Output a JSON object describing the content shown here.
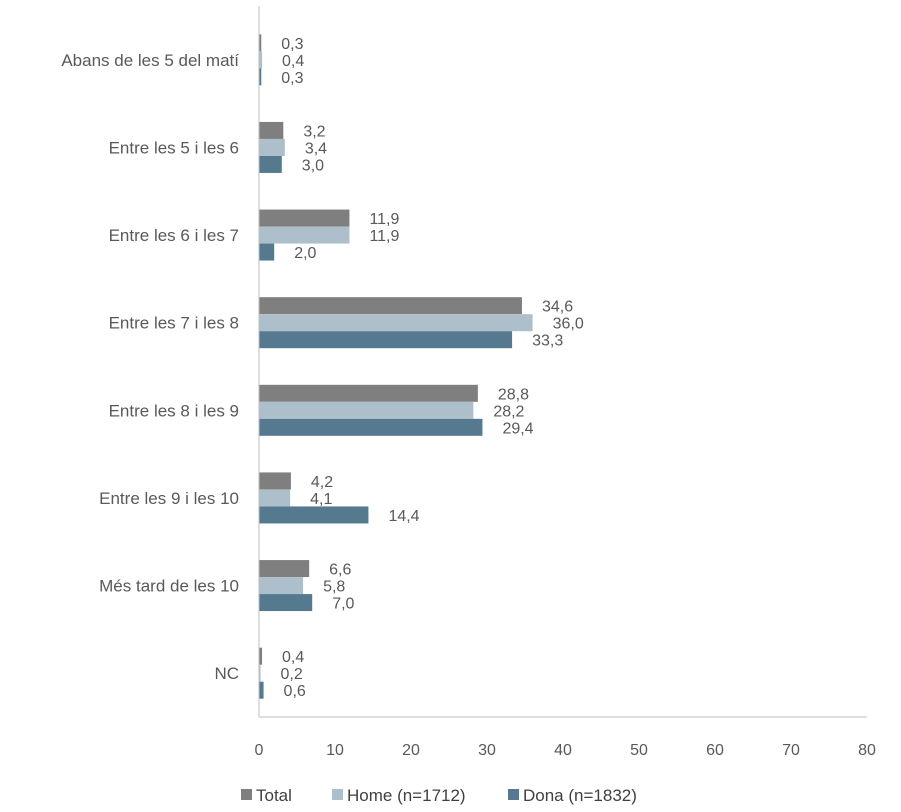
{
  "chart_data": {
    "type": "bar",
    "orientation": "horizontal",
    "categories": [
      "Abans de les 5 del matí",
      "Entre les 5 i les 6",
      "Entre les 6 i les 7",
      "Entre les 7 i les 8",
      "Entre les 8 i les 9",
      "Entre les 9 i les 10",
      "Més tard de les 10",
      "NC"
    ],
    "series": [
      {
        "name": "Total",
        "color": "#7f7f7f",
        "values": [
          0.3,
          3.2,
          11.9,
          34.6,
          28.8,
          4.2,
          6.6,
          0.4
        ],
        "labels": [
          "0,3",
          "3,2",
          "11,9",
          "34,6",
          "28,8",
          "4,2",
          "6,6",
          "0,4"
        ]
      },
      {
        "name": "Home (n=1712)",
        "color": "#adbfca",
        "values": [
          0.4,
          3.4,
          11.9,
          36.0,
          28.2,
          4.1,
          5.8,
          0.2
        ],
        "labels": [
          "0,4",
          "3,4",
          "11,9",
          "36,0",
          "28,2",
          "4,1",
          "5,8",
          "0,2"
        ]
      },
      {
        "name": "Dona (n=1832)",
        "color": "#557a8f",
        "values": [
          0.3,
          3.0,
          2.0,
          33.3,
          29.4,
          14.4,
          7.0,
          0.6
        ],
        "labels": [
          "0,3",
          "3,0",
          "2,0",
          "33,3",
          "29,4",
          "14,4",
          "7,0",
          "0,6"
        ]
      }
    ],
    "xlim": [
      0,
      80
    ],
    "xticks": [
      0,
      10,
      20,
      30,
      40,
      50,
      60,
      70,
      80
    ],
    "grid": false,
    "legend_position": "bottom"
  }
}
